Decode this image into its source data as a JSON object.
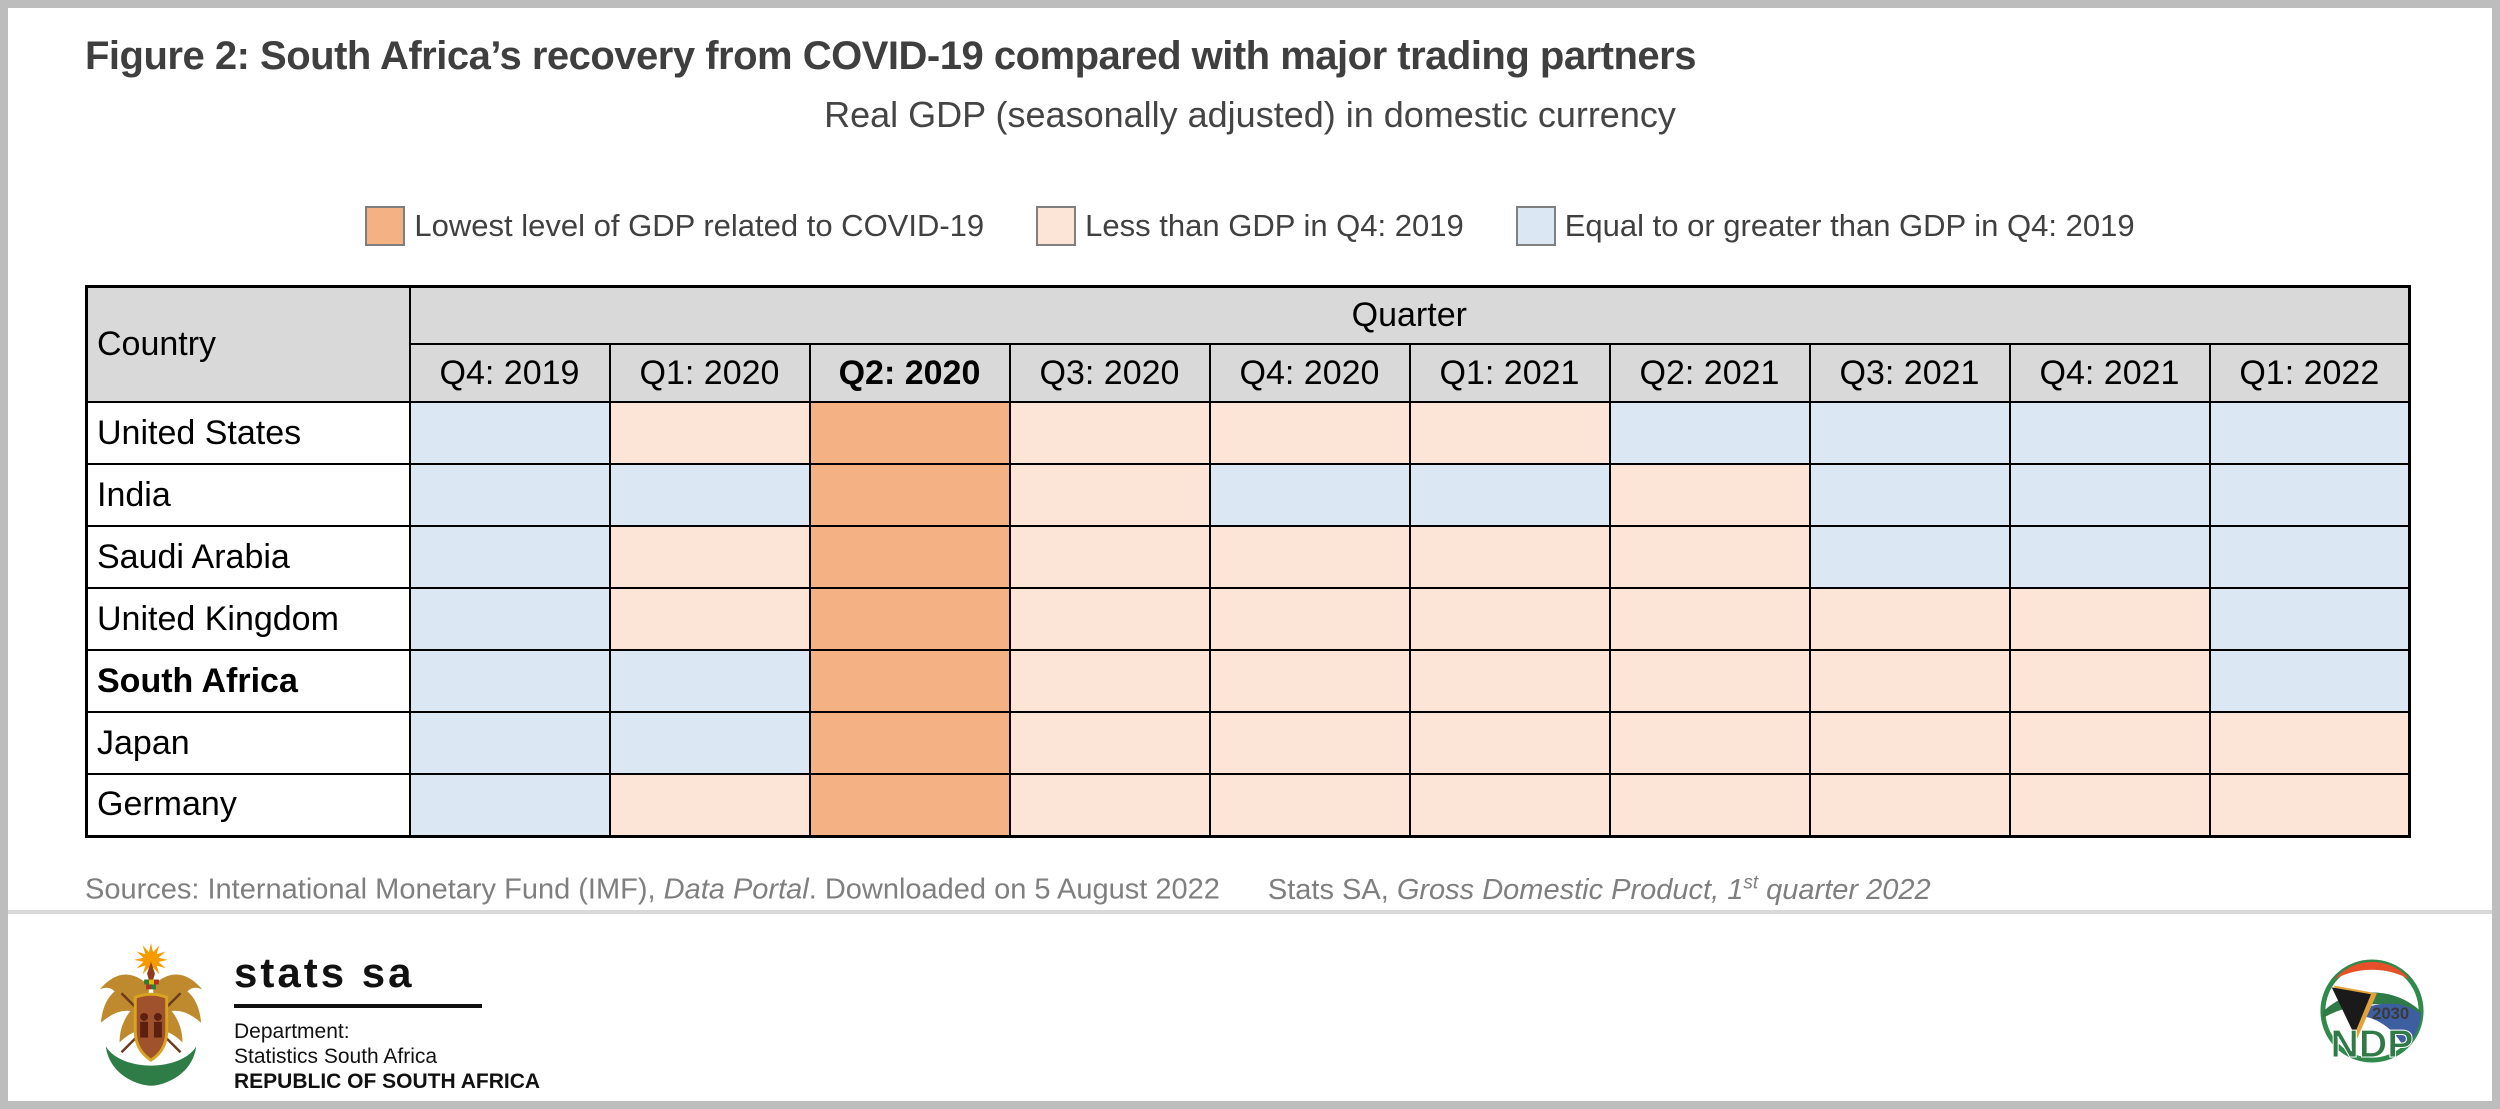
{
  "header": {
    "title": "Figure 2: South Africa’s recovery from COVID-19 compared with major trading partners",
    "subtitle": "Real GDP (seasonally adjusted) in domestic currency"
  },
  "legend": {
    "items": [
      {
        "key": "lowest",
        "label": "Lowest level of GDP related to COVID-19"
      },
      {
        "key": "below",
        "label": "Less than GDP in Q4: 2019"
      },
      {
        "key": "above",
        "label": "Equal to or greater than GDP in Q4: 2019"
      }
    ]
  },
  "chart_data": {
    "type": "heatmap",
    "title": "Figure 2: South Africa’s recovery from COVID-19 compared with major trading partners",
    "subtitle": "Real GDP (seasonally adjusted) in domestic currency",
    "row_header": "Country",
    "column_group_header": "Quarter",
    "columns": [
      "Q4: 2019",
      "Q1: 2020",
      "Q2: 2020",
      "Q3: 2020",
      "Q4: 2020",
      "Q1: 2021",
      "Q2: 2021",
      "Q3: 2021",
      "Q4: 2021",
      "Q1: 2022"
    ],
    "emphasized_column": "Q2: 2020",
    "value_meanings": {
      "lowest": "Lowest level of GDP related to COVID-19",
      "below": "Less than GDP in Q4: 2019",
      "above": "Equal to or greater than GDP in Q4: 2019"
    },
    "cell_colors": {
      "lowest": "#F4B183",
      "below": "#FCE4D6",
      "above": "#DBE8F4"
    },
    "header_fill": "#D9D9D9",
    "rows": [
      {
        "country": "United States",
        "bold": false,
        "values": [
          "above",
          "below",
          "lowest",
          "below",
          "below",
          "below",
          "above",
          "above",
          "above",
          "above"
        ]
      },
      {
        "country": "India",
        "bold": false,
        "values": [
          "above",
          "above",
          "lowest",
          "below",
          "above",
          "above",
          "below",
          "above",
          "above",
          "above"
        ]
      },
      {
        "country": "Saudi Arabia",
        "bold": false,
        "values": [
          "above",
          "below",
          "lowest",
          "below",
          "below",
          "below",
          "below",
          "above",
          "above",
          "above"
        ]
      },
      {
        "country": "United Kingdom",
        "bold": false,
        "values": [
          "above",
          "below",
          "lowest",
          "below",
          "below",
          "below",
          "below",
          "below",
          "below",
          "above"
        ]
      },
      {
        "country": "South Africa",
        "bold": true,
        "values": [
          "above",
          "above",
          "lowest",
          "below",
          "below",
          "below",
          "below",
          "below",
          "below",
          "above"
        ]
      },
      {
        "country": "Japan",
        "bold": false,
        "values": [
          "above",
          "above",
          "lowest",
          "below",
          "below",
          "below",
          "below",
          "below",
          "below",
          "below"
        ]
      },
      {
        "country": "Germany",
        "bold": false,
        "values": [
          "above",
          "below",
          "lowest",
          "below",
          "below",
          "below",
          "below",
          "below",
          "below",
          "below"
        ]
      }
    ]
  },
  "sources": {
    "imf_prefix": "Sources: International Monetary Fund (IMF), ",
    "imf_italic": "Data Portal",
    "imf_suffix": ". Downloaded on 5 August 2022",
    "stats_prefix": "Stats SA, ",
    "stats_italic1": "Gross Domestic Product, 1",
    "stats_sup": "st",
    "stats_italic2": " quarter 2022"
  },
  "footer": {
    "stats_sa": {
      "wordmark": "stats sa",
      "line1": "Department:",
      "line2": "Statistics South Africa",
      "line3": "REPUBLIC OF SOUTH AFRICA"
    },
    "ndp": {
      "year": "2030",
      "acronym": "NDP"
    }
  }
}
